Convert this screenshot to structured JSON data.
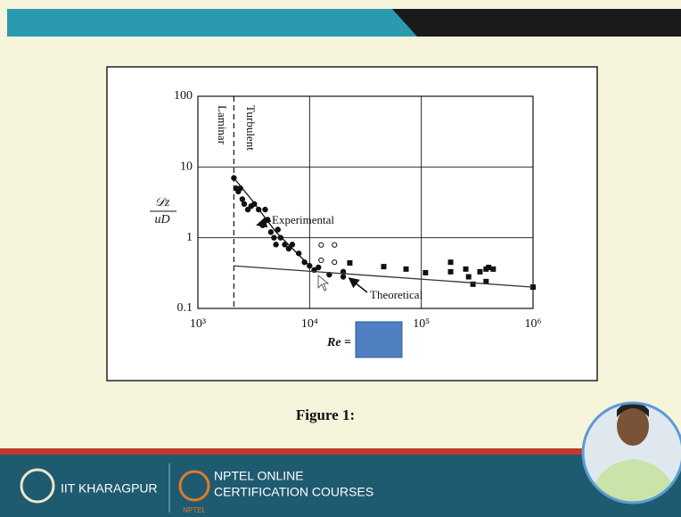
{
  "chart_data": {
    "type": "scatter",
    "xlog": true,
    "ylog": true,
    "grid": true,
    "xlim": [
      1000,
      1000000
    ],
    "ylim": [
      0.1,
      100
    ],
    "xticks": [
      {
        "value": 1000,
        "label": "10³"
      },
      {
        "value": 10000,
        "label": "10⁴"
      },
      {
        "value": 100000,
        "label": "10⁵"
      },
      {
        "value": 1000000,
        "label": "10⁶"
      }
    ],
    "yticks": [
      0.1,
      1,
      10,
      100
    ],
    "xlabel": "Re =",
    "ylabel": [
      "𝒟z",
      "uD"
    ],
    "regions": [
      "Laminar",
      "Turbulent"
    ],
    "vlines": [
      2100
    ],
    "series": [
      {
        "marker": "filled-circle",
        "color": "#111111",
        "x": [
          2100,
          2200,
          2300,
          2400,
          2500,
          2600,
          2800,
          3000,
          3200,
          3500,
          3800,
          4000,
          4200,
          4500,
          4800,
          5000,
          5200,
          5500,
          6000,
          6500,
          7000,
          8000,
          9000,
          10000,
          11000,
          12000,
          15000,
          20000,
          20000
        ],
        "values": [
          7,
          5,
          4.5,
          5,
          3.5,
          3,
          2.5,
          2.8,
          3,
          2.5,
          1.5,
          2.5,
          1.8,
          1.2,
          1,
          0.8,
          1.3,
          1,
          0.8,
          0.7,
          0.8,
          0.6,
          0.45,
          0.4,
          0.35,
          0.38,
          0.3,
          0.28,
          0.33
        ]
      },
      {
        "marker": "open-circle",
        "color": "#111111",
        "x": [
          12700,
          16700,
          16700,
          12700
        ],
        "values": [
          0.79,
          0.79,
          0.45,
          0.48
        ]
      },
      {
        "marker": "square",
        "color": "#111111",
        "x": [
          22900,
          46100,
          73000,
          109000,
          183000,
          183000,
          250000,
          265000,
          335000,
          380000,
          400000,
          440000,
          380000,
          290000,
          1000000
        ],
        "values": [
          0.44,
          0.39,
          0.36,
          0.32,
          0.45,
          0.33,
          0.36,
          0.28,
          0.33,
          0.36,
          0.38,
          0.36,
          0.24,
          0.22,
          0.2
        ]
      },
      {
        "name": "Experimental",
        "marker": "line",
        "color": "#111111",
        "x": [
          2100,
          3000,
          5000,
          10000
        ],
        "values": [
          7,
          3.5,
          1.2,
          0.4
        ]
      },
      {
        "name": "Theoretical",
        "marker": "line",
        "color": "#333333",
        "x": [
          2100,
          1000000
        ],
        "values": [
          0.4,
          0.2
        ]
      }
    ]
  },
  "slide": {
    "caption": "Figure 1:",
    "footer": {
      "institute": "IIT KHARAGPUR",
      "program": [
        "NPTEL ONLINE",
        "CERTIFICATION COURSES"
      ],
      "logo_text": "NPTEL"
    }
  }
}
